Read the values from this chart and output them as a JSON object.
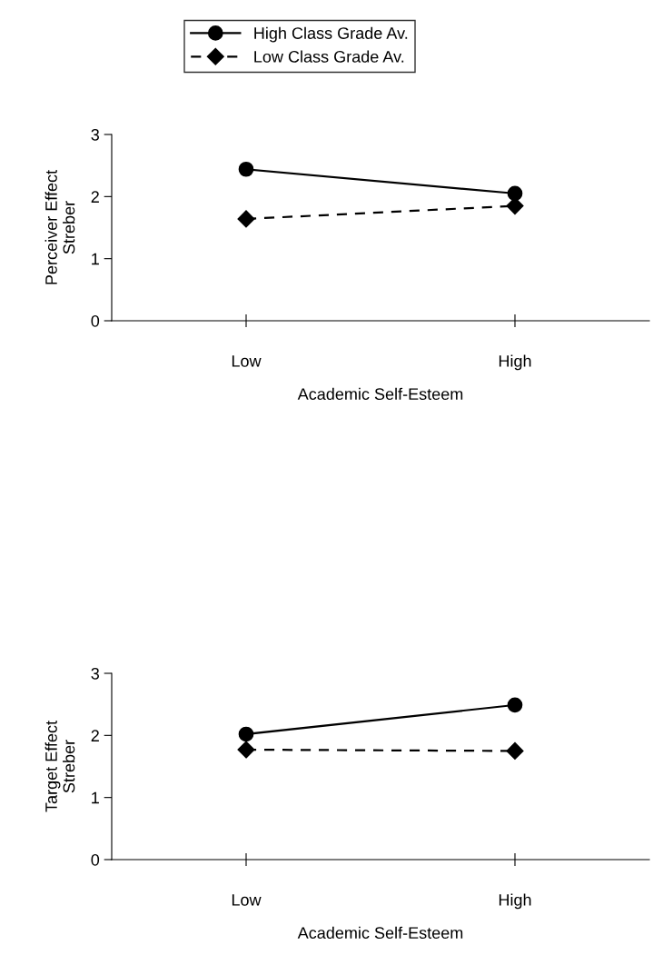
{
  "chart_data": [
    {
      "type": "line",
      "categories": [
        "Low",
        "High"
      ],
      "xlabel": "Academic Self-Esteem",
      "ylabel": "Perceiver Effect\nStreber",
      "ylim": [
        0,
        3
      ],
      "yticks": [
        0,
        1,
        2,
        3
      ],
      "legend": "top",
      "grid": false,
      "series": [
        {
          "name": "High Class Grade Av.",
          "color": "#000000",
          "values": [
            2.44,
            2.05
          ],
          "marker": "circle",
          "line_style": "solid"
        },
        {
          "name": "Low Class Grade Av.",
          "color": "#000000",
          "values": [
            1.64,
            1.85
          ],
          "marker": "diamond",
          "line_style": "dashed"
        }
      ]
    },
    {
      "type": "line",
      "categories": [
        "Low",
        "High"
      ],
      "xlabel": "Academic Self-Esteem",
      "ylabel": "Target Effect\nStreber",
      "ylim": [
        0,
        3
      ],
      "yticks": [
        0,
        1,
        2,
        3
      ],
      "grid": false,
      "series": [
        {
          "color": "#000000",
          "values": [
            2.02,
            2.49
          ],
          "marker": "circle",
          "line_style": "solid"
        },
        {
          "color": "#000000",
          "values": [
            1.77,
            1.75
          ],
          "marker": "diamond",
          "line_style": "dashed"
        }
      ]
    }
  ]
}
